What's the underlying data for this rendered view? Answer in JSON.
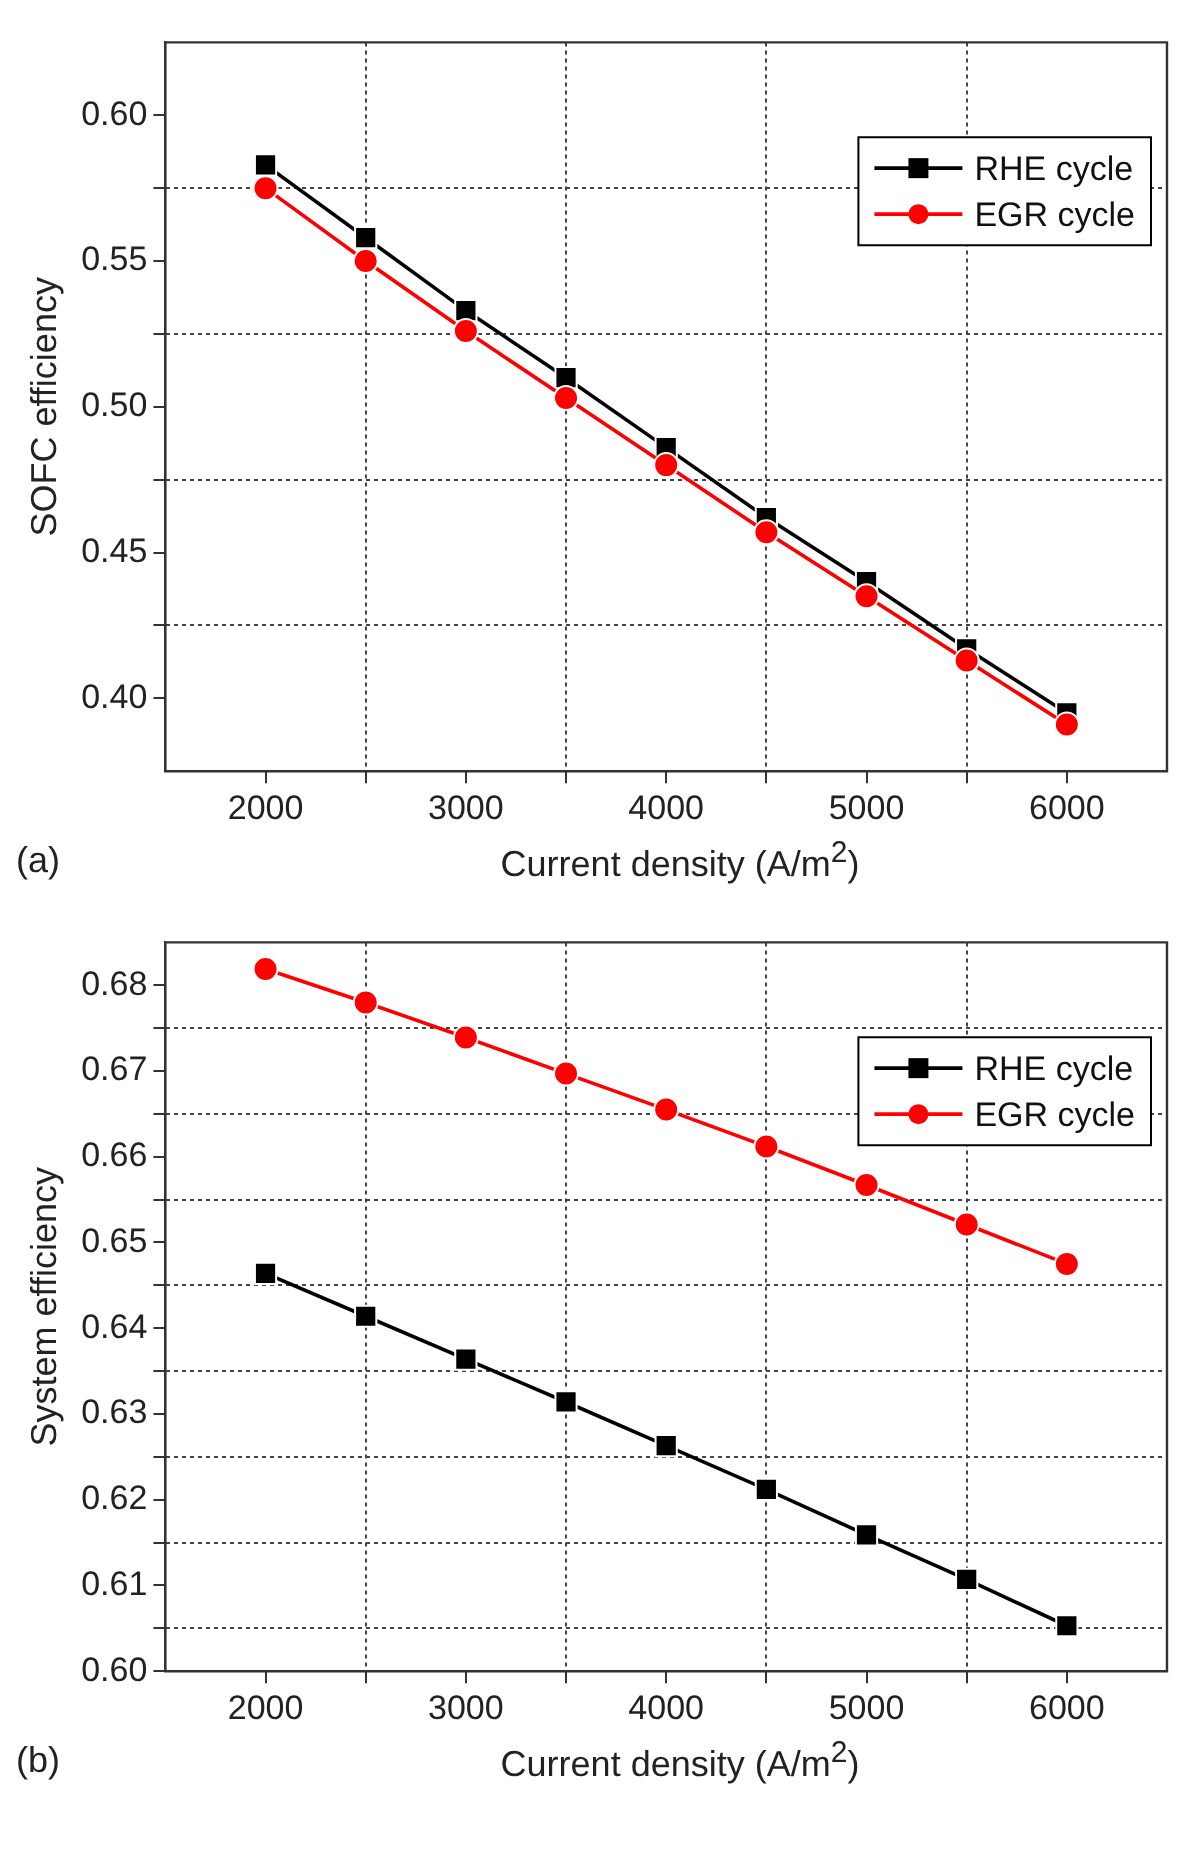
{
  "chart_data": [
    {
      "type": "line",
      "xlabel": "Current density (A/m$^{2}$)",
      "ylabel": "SOFC efficiency",
      "annotations": [
        "(a)"
      ],
      "x": [
        2000,
        2500,
        3000,
        3500,
        4000,
        4500,
        5000,
        5500,
        6000
      ],
      "series": [
        {
          "name": "RHE cycle",
          "color": "#000000",
          "marker": "square",
          "values": [
            0.583,
            0.558,
            0.533,
            0.51,
            0.486,
            0.462,
            0.44,
            0.417,
            0.395
          ]
        },
        {
          "name": "EGR cycle",
          "color": "#ff0000",
          "marker": "circle",
          "values": [
            0.575,
            0.55,
            0.526,
            0.503,
            0.48,
            0.457,
            0.435,
            0.413,
            0.391
          ]
        }
      ],
      "xlim": [
        1500,
        6500
      ],
      "xticks": [
        2000,
        {
          "value": 2500,
          "label": null
        },
        3000,
        {
          "value": 3500,
          "label": null
        },
        4000,
        {
          "value": 4500,
          "label": null
        },
        5000,
        {
          "value": 5500,
          "label": null
        },
        6000
      ],
      "ylim": [
        0.375,
        0.625
      ],
      "yticks": [
        {
          "value": 0.4,
          "label": "0.40"
        },
        {
          "value": 0.425,
          "label": null
        },
        0.45,
        {
          "value": 0.475,
          "label": null
        },
        {
          "value": 0.5,
          "label": "0.50"
        },
        {
          "value": 0.525,
          "label": null
        },
        0.55,
        {
          "value": 0.575,
          "label": null
        },
        {
          "value": 0.6,
          "label": "0.60"
        }
      ],
      "grid": true,
      "legend": "top right",
      "line_style": "solid"
    },
    {
      "type": "line",
      "xlabel": "Current density (A/m$^{2}$)",
      "ylabel": "System efficiency",
      "annotations": [
        "(b)"
      ],
      "x": [
        2000,
        2500,
        3000,
        3500,
        4000,
        4500,
        5000,
        5500,
        6000
      ],
      "series": [
        {
          "name": "RHE cycle",
          "color": "#000000",
          "marker": "square",
          "values": [
            0.6464,
            0.6414,
            0.6364,
            0.6314,
            0.6263,
            0.6212,
            0.6159,
            0.6107,
            0.6053
          ]
        },
        {
          "name": "EGR cycle",
          "color": "#ff0000",
          "marker": "circle",
          "values": [
            0.6819,
            0.678,
            0.6739,
            0.6697,
            0.6655,
            0.6612,
            0.6567,
            0.6521,
            0.6475
          ]
        }
      ],
      "xlim": [
        1500,
        6500
      ],
      "xticks": [
        2000,
        {
          "value": 2500,
          "label": null
        },
        3000,
        {
          "value": 3500,
          "label": null
        },
        4000,
        {
          "value": 4500,
          "label": null
        },
        5000,
        {
          "value": 5500,
          "label": null
        },
        6000
      ],
      "ylim": [
        0.6,
        0.685
      ],
      "yticks": [
        {
          "value": 0.6,
          "label": "0.60"
        },
        {
          "value": 0.605,
          "label": null
        },
        0.61,
        {
          "value": 0.615,
          "label": null
        },
        0.62,
        {
          "value": 0.625,
          "label": null
        },
        0.63,
        {
          "value": 0.635,
          "label": null
        },
        0.64,
        {
          "value": 0.645,
          "label": null
        },
        0.65,
        {
          "value": 0.655,
          "label": null
        },
        0.66,
        {
          "value": 0.665,
          "label": null
        },
        0.67,
        {
          "value": 0.675,
          "label": null
        },
        0.68
      ],
      "grid": true,
      "legend": "top right",
      "line_style": "solid"
    }
  ]
}
